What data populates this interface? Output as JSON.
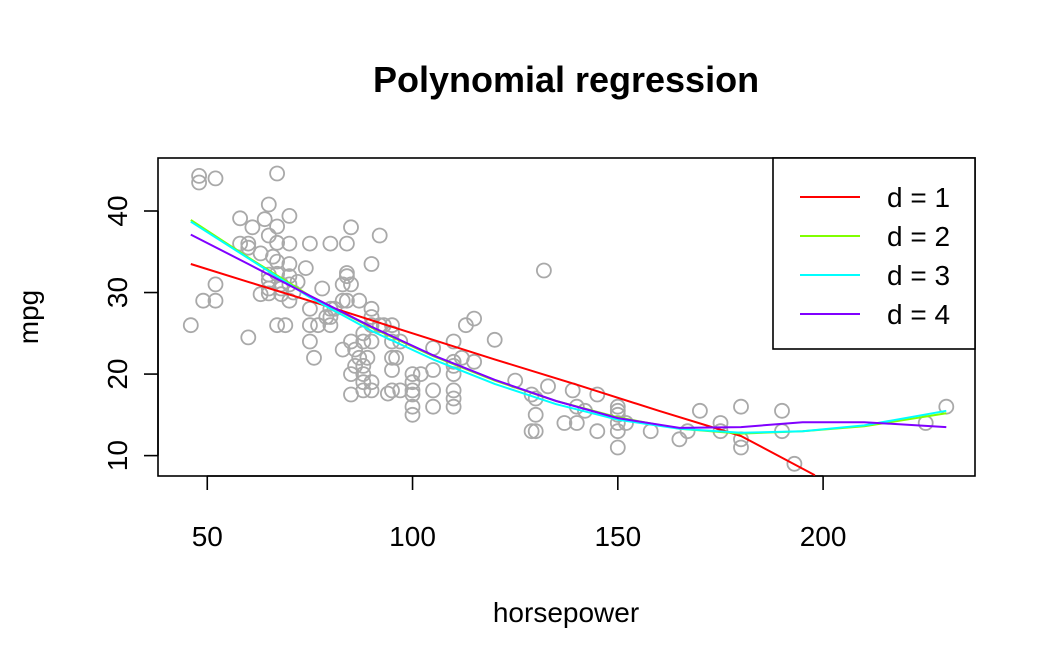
{
  "chart_data": {
    "type": "scatter",
    "title": "Polynomial regression",
    "xlabel": "horsepower",
    "ylabel": "mpg",
    "xlim": [
      38,
      237
    ],
    "ylim": [
      7.5,
      46.5
    ],
    "x_ticks": [
      50,
      100,
      150,
      200
    ],
    "y_ticks": [
      10,
      20,
      30,
      40
    ],
    "grid": false,
    "legend_position": "top-right",
    "point_color": "#A9A9A9",
    "points": [
      [
        46,
        26
      ],
      [
        48,
        43.5
      ],
      [
        48,
        44.3
      ],
      [
        49,
        29
      ],
      [
        52,
        44
      ],
      [
        52,
        31
      ],
      [
        52,
        29
      ],
      [
        58,
        39.1
      ],
      [
        58,
        36
      ],
      [
        60,
        24.5
      ],
      [
        60,
        35.5
      ],
      [
        60,
        36
      ],
      [
        61,
        38
      ],
      [
        63,
        29.8
      ],
      [
        63,
        34.8
      ],
      [
        64,
        39
      ],
      [
        65,
        29.9
      ],
      [
        65,
        31.5
      ],
      [
        65,
        32.2
      ],
      [
        65,
        30.5
      ],
      [
        65,
        37
      ],
      [
        65,
        40.8
      ],
      [
        66,
        34.4
      ],
      [
        67,
        44.6
      ],
      [
        67,
        36.1
      ],
      [
        67,
        32.3
      ],
      [
        67,
        38.1
      ],
      [
        67,
        26
      ],
      [
        67,
        33.8
      ],
      [
        68,
        29.8
      ],
      [
        68,
        31
      ],
      [
        68,
        30.5
      ],
      [
        69,
        26
      ],
      [
        70,
        36
      ],
      [
        70,
        39.4
      ],
      [
        70,
        32
      ],
      [
        70,
        31
      ],
      [
        70,
        29
      ],
      [
        70,
        33.5
      ],
      [
        71,
        30
      ],
      [
        72,
        31.3
      ],
      [
        74,
        33
      ],
      [
        75,
        36
      ],
      [
        75,
        28
      ],
      [
        75,
        26
      ],
      [
        75,
        24
      ],
      [
        76,
        22
      ],
      [
        77,
        26
      ],
      [
        78,
        30.5
      ],
      [
        79,
        27
      ],
      [
        80,
        36
      ],
      [
        80,
        26
      ],
      [
        80,
        28
      ],
      [
        80,
        27
      ],
      [
        81,
        28
      ],
      [
        83,
        29
      ],
      [
        83,
        31
      ],
      [
        83,
        23
      ],
      [
        84,
        32
      ],
      [
        84,
        29
      ],
      [
        84,
        36
      ],
      [
        84,
        32.4
      ],
      [
        85,
        20
      ],
      [
        85,
        24
      ],
      [
        85,
        38
      ],
      [
        85,
        31
      ],
      [
        85,
        17.5
      ],
      [
        86,
        21
      ],
      [
        86,
        23
      ],
      [
        87,
        22
      ],
      [
        87,
        29
      ],
      [
        88,
        24
      ],
      [
        88,
        19
      ],
      [
        88,
        20
      ],
      [
        88,
        25
      ],
      [
        88,
        18
      ],
      [
        88,
        21
      ],
      [
        89,
        22
      ],
      [
        90,
        26
      ],
      [
        90,
        28
      ],
      [
        90,
        24
      ],
      [
        90,
        27
      ],
      [
        90,
        33.5
      ],
      [
        90,
        18
      ],
      [
        90,
        19
      ],
      [
        92,
        26
      ],
      [
        92,
        37
      ],
      [
        93,
        26
      ],
      [
        94,
        17.6
      ],
      [
        95,
        22
      ],
      [
        95,
        24
      ],
      [
        95,
        20.5
      ],
      [
        95,
        18
      ],
      [
        95,
        26
      ],
      [
        95,
        25
      ],
      [
        96,
        22
      ],
      [
        97,
        24
      ],
      [
        97,
        18
      ],
      [
        100,
        18
      ],
      [
        100,
        15
      ],
      [
        100,
        19
      ],
      [
        100,
        20
      ],
      [
        100,
        16
      ],
      [
        100,
        17.5
      ],
      [
        102,
        20
      ],
      [
        105,
        23.2
      ],
      [
        105,
        18
      ],
      [
        105,
        16
      ],
      [
        105,
        20.5
      ],
      [
        110,
        20
      ],
      [
        110,
        16
      ],
      [
        110,
        18
      ],
      [
        110,
        17
      ],
      [
        110,
        24
      ],
      [
        110,
        21
      ],
      [
        110,
        21.5
      ],
      [
        112,
        22
      ],
      [
        113,
        26
      ],
      [
        115,
        21.5
      ],
      [
        115,
        26.8
      ],
      [
        120,
        24.2
      ],
      [
        125,
        19.2
      ],
      [
        129,
        13
      ],
      [
        129,
        17.5
      ],
      [
        130,
        13
      ],
      [
        130,
        15
      ],
      [
        130,
        17
      ],
      [
        132,
        32.7
      ],
      [
        133,
        18.5
      ],
      [
        137,
        14
      ],
      [
        139,
        18
      ],
      [
        140,
        16
      ],
      [
        140,
        14
      ],
      [
        142,
        15.5
      ],
      [
        145,
        13
      ],
      [
        145,
        17.5
      ],
      [
        150,
        14
      ],
      [
        150,
        15
      ],
      [
        150,
        16
      ],
      [
        150,
        13
      ],
      [
        150,
        11
      ],
      [
        150,
        15.5
      ],
      [
        152,
        14
      ],
      [
        158,
        13
      ],
      [
        165,
        12
      ],
      [
        167,
        13
      ],
      [
        170,
        15.5
      ],
      [
        175,
        13
      ],
      [
        175,
        14
      ],
      [
        180,
        11
      ],
      [
        180,
        12
      ],
      [
        180,
        16
      ],
      [
        190,
        13
      ],
      [
        190,
        15.5
      ],
      [
        193,
        9
      ],
      [
        225,
        14
      ],
      [
        230,
        16
      ]
    ],
    "series": [
      {
        "name": "d = 1",
        "color": "#FF0000",
        "x": [
          46,
          60,
          80,
          100,
          120,
          140,
          160,
          180,
          198
        ],
        "y": [
          33.5,
          31.3,
          28.2,
          25.0,
          21.8,
          18.7,
          15.5,
          12.4,
          7.6
        ]
      },
      {
        "name": "d = 2",
        "color": "#80FF00",
        "x": [
          46,
          60,
          75,
          90,
          105,
          120,
          135,
          150,
          165,
          180,
          195,
          210,
          230
        ],
        "y": [
          38.9,
          34.3,
          29.6,
          25.7,
          22.2,
          19.2,
          16.7,
          14.7,
          13.3,
          12.7,
          13.0,
          13.6,
          15.2
        ]
      },
      {
        "name": "d = 3",
        "color": "#00FFFF",
        "x": [
          46,
          60,
          75,
          90,
          105,
          120,
          135,
          150,
          165,
          180,
          195,
          210,
          230
        ],
        "y": [
          38.7,
          34.2,
          29.4,
          25.3,
          21.8,
          18.8,
          16.3,
          14.4,
          13.3,
          12.8,
          13.0,
          13.7,
          15.5
        ]
      },
      {
        "name": "d = 4",
        "color": "#8000FF",
        "x": [
          46,
          60,
          75,
          90,
          105,
          120,
          135,
          150,
          165,
          180,
          195,
          210,
          230
        ],
        "y": [
          37.1,
          33.5,
          29.6,
          25.8,
          22.3,
          19.3,
          16.7,
          14.6,
          13.4,
          13.5,
          14.1,
          14.1,
          13.5
        ]
      }
    ]
  }
}
